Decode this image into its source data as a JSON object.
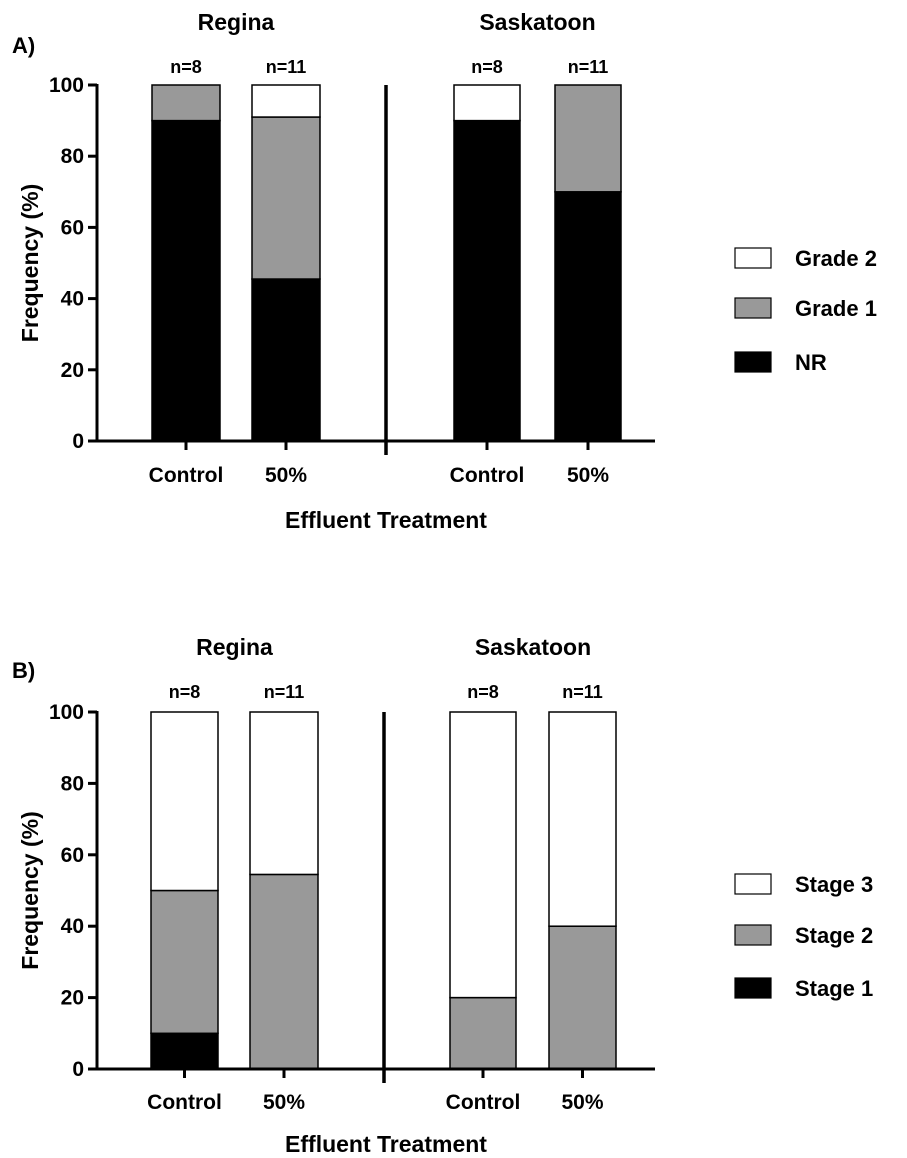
{
  "chart_data": [
    {
      "panel_label": "A)",
      "type": "bar",
      "stacked": true,
      "ylabel": "Frequency (%)",
      "xlabel": "Effluent Treatment",
      "ylim": [
        0,
        100
      ],
      "yticks": [
        0,
        20,
        40,
        60,
        80,
        100
      ],
      "legend_position": "right",
      "groups": [
        {
          "name": "Regina",
          "bars": [
            {
              "category": "Control",
              "n_label": "n=8",
              "values": {
                "NR": 90,
                "Grade 1": 10,
                "Grade 2": 0
              }
            },
            {
              "category": "50%",
              "n_label": "n=11",
              "values": {
                "NR": 45.5,
                "Grade 1": 45.5,
                "Grade 2": 9
              }
            }
          ]
        },
        {
          "name": "Saskatoon",
          "bars": [
            {
              "category": "Control",
              "n_label": "n=8",
              "values": {
                "NR": 90,
                "Grade 1": 0,
                "Grade 2": 10
              }
            },
            {
              "category": "50%",
              "n_label": "n=11",
              "values": {
                "NR": 70,
                "Grade 1": 30,
                "Grade 2": 0
              }
            }
          ]
        }
      ],
      "series": [
        {
          "name": "NR",
          "color": "#000000"
        },
        {
          "name": "Grade 1",
          "color": "#999999"
        },
        {
          "name": "Grade 2",
          "color": "#ffffff"
        }
      ]
    },
    {
      "panel_label": "B)",
      "type": "bar",
      "stacked": true,
      "ylabel": "Frequency (%)",
      "xlabel": "Effluent Treatment",
      "ylim": [
        0,
        100
      ],
      "yticks": [
        0,
        20,
        40,
        60,
        80,
        100
      ],
      "legend_position": "right",
      "groups": [
        {
          "name": "Regina",
          "bars": [
            {
              "category": "Control",
              "n_label": "n=8",
              "values": {
                "Stage 1": 10,
                "Stage 2": 40,
                "Stage 3": 50
              }
            },
            {
              "category": "50%",
              "n_label": "n=11",
              "values": {
                "Stage 1": 0,
                "Stage 2": 54.5,
                "Stage 3": 45.5
              }
            }
          ]
        },
        {
          "name": "Saskatoon",
          "bars": [
            {
              "category": "Control",
              "n_label": "n=8",
              "values": {
                "Stage 1": 0,
                "Stage 2": 20,
                "Stage 3": 80
              }
            },
            {
              "category": "50%",
              "n_label": "n=11",
              "values": {
                "Stage 1": 0,
                "Stage 2": 40,
                "Stage 3": 60
              }
            }
          ]
        }
      ],
      "series": [
        {
          "name": "Stage 1",
          "color": "#000000"
        },
        {
          "name": "Stage 2",
          "color": "#999999"
        },
        {
          "name": "Stage 3",
          "color": "#ffffff"
        }
      ]
    }
  ]
}
